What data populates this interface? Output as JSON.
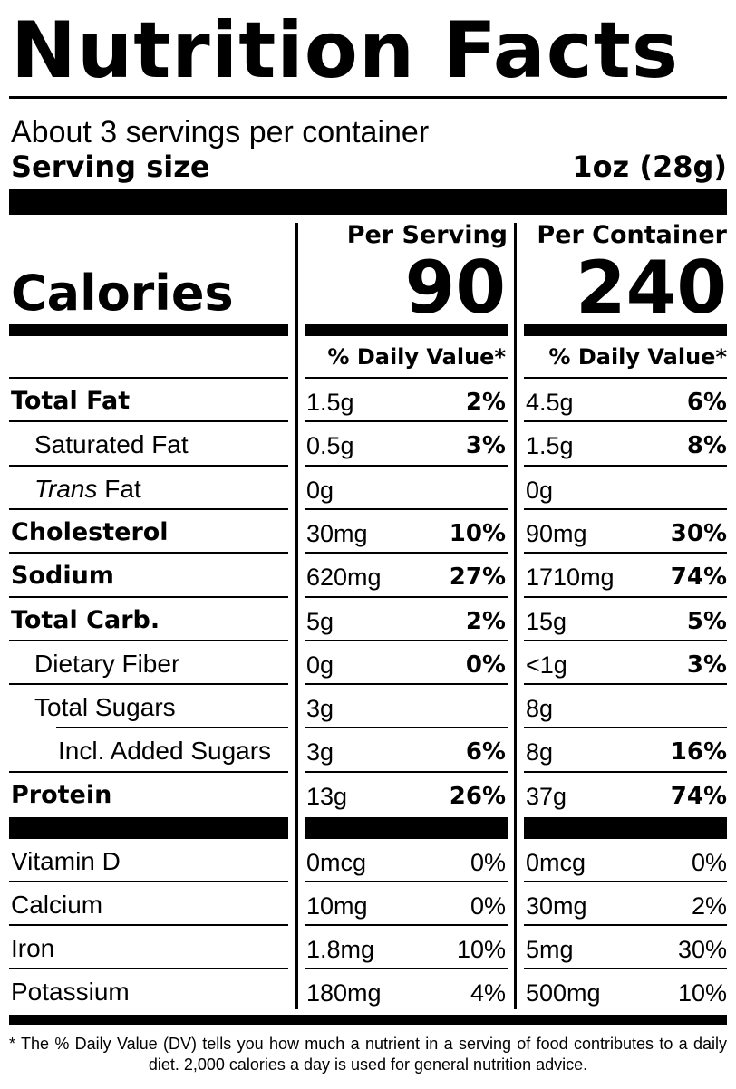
{
  "title": "Nutrition Facts",
  "servings_per_container": "About 3 servings per container",
  "serving_size": {
    "label": "Serving size",
    "value": "1oz (28g)"
  },
  "columns": {
    "per_serving": "Per Serving",
    "per_container": "Per Container"
  },
  "calories": {
    "label": "Calories",
    "per_serving": "90",
    "per_container": "240"
  },
  "daily_value_header": "% Daily Value*",
  "nutrients": [
    {
      "name": "Total Fat",
      "bold": true,
      "indent": 0,
      "serving_amount": "1.5g",
      "serving_dv": "2%",
      "container_amount": "4.5g",
      "container_dv": "6%"
    },
    {
      "name": "Saturated Fat",
      "bold": false,
      "indent": 1,
      "serving_amount": "0.5g",
      "serving_dv": "3%",
      "container_amount": "1.5g",
      "container_dv": "8%"
    },
    {
      "name_italic": "Trans",
      "name": " Fat",
      "bold": false,
      "indent": 1,
      "serving_amount": "0g",
      "serving_dv": "",
      "container_amount": "0g",
      "container_dv": ""
    },
    {
      "name": "Cholesterol",
      "bold": true,
      "indent": 0,
      "serving_amount": "30mg",
      "serving_dv": "10%",
      "container_amount": "90mg",
      "container_dv": "30%"
    },
    {
      "name": "Sodium",
      "bold": true,
      "indent": 0,
      "serving_amount": "620mg",
      "serving_dv": "27%",
      "container_amount": "1710mg",
      "container_dv": "74%"
    },
    {
      "name": "Total Carb.",
      "bold": true,
      "indent": 0,
      "serving_amount": "5g",
      "serving_dv": "2%",
      "container_amount": "15g",
      "container_dv": "5%"
    },
    {
      "name": "Dietary Fiber",
      "bold": false,
      "indent": 1,
      "serving_amount": "0g",
      "serving_dv": "0%",
      "container_amount": "<1g",
      "container_dv": "3%"
    },
    {
      "name": "Total Sugars",
      "bold": false,
      "indent": 1,
      "serving_amount": "3g",
      "serving_dv": "",
      "container_amount": "8g",
      "container_dv": ""
    },
    {
      "name": "Incl. Added Sugars",
      "bold": false,
      "indent": 2,
      "serving_amount": "3g",
      "serving_dv": "6%",
      "container_amount": "8g",
      "container_dv": "16%"
    },
    {
      "name": "Protein",
      "bold": true,
      "indent": 0,
      "serving_amount": "13g",
      "serving_dv": "26%",
      "container_amount": "37g",
      "container_dv": "74%"
    }
  ],
  "vitamins": [
    {
      "name": "Vitamin D",
      "serving_amount": "0mcg",
      "serving_dv": "0%",
      "container_amount": "0mcg",
      "container_dv": "0%"
    },
    {
      "name": "Calcium",
      "serving_amount": "10mg",
      "serving_dv": "0%",
      "container_amount": "30mg",
      "container_dv": "2%"
    },
    {
      "name": "Iron",
      "serving_amount": "1.8mg",
      "serving_dv": "10%",
      "container_amount": "5mg",
      "container_dv": "30%"
    },
    {
      "name": "Potassium",
      "serving_amount": "180mg",
      "serving_dv": "4%",
      "container_amount": "500mg",
      "container_dv": "10%"
    }
  ],
  "footnote": "* The % Daily Value (DV) tells you how much a nutrient in a serving of food contributes to a daily diet. 2,000 calories a day is used for general nutrition advice."
}
